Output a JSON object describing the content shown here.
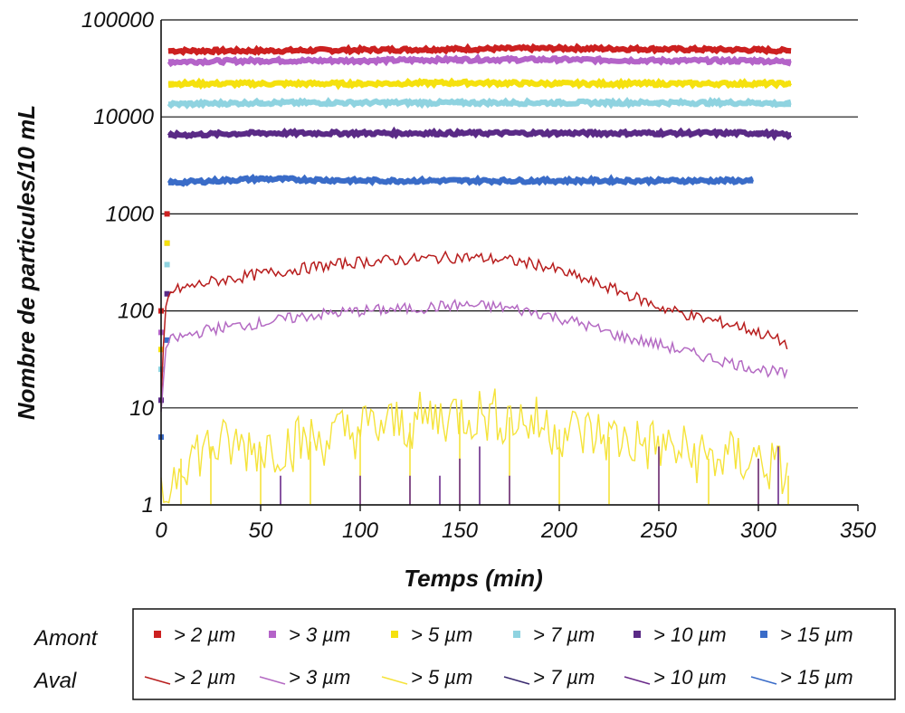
{
  "chart_data": {
    "type": "line",
    "xlabel": "Temps (min)",
    "ylabel": "Nombre de particules/10 mL",
    "xlim": [
      0,
      350
    ],
    "ylim": [
      1,
      100000
    ],
    "yscale": "log",
    "xticks": [
      "0",
      "50",
      "100",
      "150",
      "200",
      "250",
      "300",
      "350"
    ],
    "yticks": [
      "1",
      "10",
      "100",
      "1000",
      "10000",
      "100000"
    ],
    "grid": "horizontal",
    "legend_placement": "bottom",
    "legend_groups": [
      "Amont",
      "Aval"
    ],
    "series": [
      {
        "name": "> 2 µm",
        "group": "Amont",
        "style": "markers",
        "color": "#cc2020",
        "x": [
          0,
          3,
          5,
          50,
          100,
          150,
          200,
          250,
          300,
          315
        ],
        "values": [
          100,
          1000,
          48000,
          48000,
          49000,
          50000,
          51000,
          50000,
          49000,
          48000
        ]
      },
      {
        "name": "> 3 µm",
        "group": "Amont",
        "style": "markers",
        "color": "#b463c8",
        "x": [
          0,
          3,
          5,
          50,
          100,
          150,
          200,
          250,
          300,
          315
        ],
        "values": [
          60,
          500,
          37000,
          38000,
          38000,
          39000,
          39000,
          38000,
          38000,
          37000
        ]
      },
      {
        "name": "> 5 µm",
        "group": "Amont",
        "style": "markers",
        "color": "#f5e10e",
        "x": [
          0,
          3,
          5,
          50,
          100,
          150,
          200,
          250,
          300,
          315
        ],
        "values": [
          40,
          500,
          22000,
          22000,
          22000,
          22500,
          22000,
          22000,
          22000,
          22000
        ]
      },
      {
        "name": "> 7 µm",
        "group": "Amont",
        "style": "markers",
        "color": "#8fd3e0",
        "x": [
          0,
          3,
          5,
          50,
          100,
          150,
          200,
          250,
          300,
          315
        ],
        "values": [
          25,
          300,
          13500,
          14000,
          14000,
          14000,
          14000,
          14000,
          14000,
          13500
        ]
      },
      {
        "name": "> 10 µm",
        "group": "Amont",
        "style": "markers",
        "color": "#5a2a86",
        "x": [
          0,
          3,
          5,
          50,
          100,
          150,
          200,
          250,
          300,
          315
        ],
        "values": [
          12,
          150,
          6500,
          6800,
          6800,
          6800,
          6800,
          6800,
          6800,
          6500
        ]
      },
      {
        "name": "> 15 µm",
        "group": "Amont",
        "style": "markers",
        "color": "#3a6cc8",
        "x": [
          0,
          3,
          5,
          50,
          100,
          150,
          200,
          250,
          296
        ],
        "values": [
          5,
          50,
          2100,
          2300,
          2200,
          2200,
          2200,
          2200,
          2200
        ]
      },
      {
        "name": "> 2 µm",
        "group": "Aval",
        "style": "line",
        "color": "#b81e1e",
        "x": [
          0,
          2,
          5,
          25,
          50,
          75,
          100,
          125,
          150,
          170,
          190,
          210,
          230,
          250,
          270,
          290,
          305,
          315
        ],
        "values": [
          10,
          100,
          160,
          200,
          240,
          280,
          320,
          340,
          360,
          340,
          300,
          220,
          160,
          110,
          85,
          70,
          55,
          45
        ]
      },
      {
        "name": "> 3 µm",
        "group": "Aval",
        "style": "line",
        "color": "#b46ac3",
        "x": [
          0,
          2,
          5,
          25,
          50,
          75,
          100,
          125,
          150,
          170,
          190,
          210,
          230,
          250,
          270,
          290,
          305,
          315
        ],
        "values": [
          8,
          40,
          50,
          65,
          75,
          90,
          100,
          105,
          115,
          110,
          95,
          75,
          55,
          45,
          35,
          28,
          24,
          22
        ]
      },
      {
        "name": "> 5 µm",
        "group": "Aval",
        "style": "line",
        "color": "#f5e33a",
        "x": [
          0,
          10,
          25,
          50,
          75,
          100,
          125,
          150,
          175,
          200,
          225,
          250,
          275,
          300,
          315
        ],
        "values": [
          1,
          3,
          4,
          4,
          4.5,
          6,
          7,
          9,
          8,
          6,
          5,
          4,
          3,
          3,
          2
        ]
      },
      {
        "name": "> 7 µm",
        "group": "Aval",
        "style": "line",
        "color": "#3a2a70",
        "x": [],
        "values": []
      },
      {
        "name": "> 10 µm",
        "group": "Aval",
        "style": "line",
        "color": "#6a2a8a",
        "x": [
          60,
          100,
          125,
          140,
          150,
          160,
          175,
          250,
          300,
          310
        ],
        "values": [
          2,
          2,
          2,
          2,
          3,
          4,
          2,
          4,
          3,
          4
        ]
      },
      {
        "name": "> 15 µm",
        "group": "Aval",
        "style": "line",
        "color": "#3a6cc8",
        "x": [],
        "values": []
      }
    ]
  }
}
